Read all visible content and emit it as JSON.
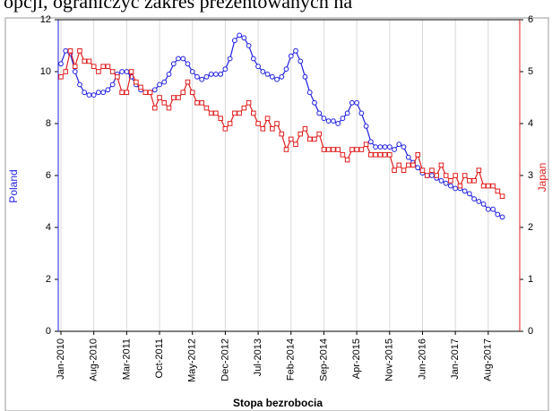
{
  "page_text": "opcji, ograniczyć zakres prezentowanych na",
  "chart_data": {
    "type": "line",
    "x_label": "Stopa bezrobocia",
    "y_label": "Poland",
    "y2_label": "Japan",
    "categories": [
      "Jan-2010",
      null,
      null,
      null,
      null,
      null,
      null,
      "Aug-2010",
      null,
      null,
      null,
      null,
      null,
      null,
      "Mar-2011",
      null,
      null,
      null,
      null,
      null,
      null,
      "Oct-2011",
      null,
      null,
      null,
      null,
      null,
      null,
      "May-2012",
      null,
      null,
      null,
      null,
      null,
      null,
      "Dec-2012",
      null,
      null,
      null,
      null,
      null,
      null,
      "Jul-2013",
      null,
      null,
      null,
      null,
      null,
      null,
      "Feb-2014",
      null,
      null,
      null,
      null,
      null,
      null,
      "Sep-2014",
      null,
      null,
      null,
      null,
      null,
      null,
      "Apr-2015",
      null,
      null,
      null,
      null,
      null,
      null,
      "Nov-2015",
      null,
      null,
      null,
      null,
      null,
      null,
      "Jun-2016",
      null,
      null,
      null,
      null,
      null,
      null,
      "Jan-2017",
      null,
      null,
      null,
      null,
      null,
      null,
      "Aug-2017",
      null,
      null,
      null
    ],
    "ylim": [
      0,
      12
    ],
    "yticks": [
      0,
      2,
      4,
      6,
      8,
      10,
      12
    ],
    "y2lim": [
      0,
      6
    ],
    "y2ticks": [
      0,
      1,
      2,
      3,
      4,
      5,
      6
    ],
    "grid": true,
    "series": [
      {
        "name": "Poland",
        "color": "#1f1fe0",
        "marker": "circle",
        "values": [
          10.3,
          10.8,
          10.7,
          10.0,
          9.5,
          9.2,
          9.1,
          9.1,
          9.2,
          9.2,
          9.3,
          9.5,
          9.9,
          10.0,
          10.0,
          9.8,
          9.5,
          9.3,
          9.2,
          9.2,
          9.3,
          9.5,
          9.6,
          9.9,
          10.3,
          10.5,
          10.5,
          10.3,
          10.0,
          9.8,
          9.7,
          9.8,
          9.9,
          9.9,
          9.9,
          10.1,
          10.5,
          11.2,
          11.4,
          11.3,
          11.0,
          10.5,
          10.2,
          10.0,
          9.9,
          9.8,
          9.7,
          9.8,
          10.1,
          10.6,
          10.8,
          10.4,
          9.8,
          9.2,
          8.8,
          8.4,
          8.2,
          8.1,
          8.1,
          8.0,
          8.2,
          8.4,
          8.8,
          8.8,
          8.4,
          7.9,
          7.3,
          7.1,
          7.1,
          7.1,
          7.1,
          7.0,
          7.2,
          7.1,
          6.7,
          6.5,
          6.3,
          6.1,
          6.0,
          6.0,
          5.9,
          5.8,
          5.7,
          5.6,
          5.5,
          5.5,
          5.4,
          5.3,
          5.1,
          5.0,
          4.9,
          4.7,
          4.7,
          4.5,
          4.4
        ]
      },
      {
        "name": "Japan",
        "color": "#e01f1f",
        "marker": "square",
        "axis": "y2",
        "values": [
          4.9,
          5.0,
          5.4,
          5.1,
          5.4,
          5.2,
          5.2,
          5.1,
          5.0,
          5.1,
          5.1,
          5.0,
          4.9,
          4.6,
          4.6,
          5.0,
          4.8,
          4.7,
          4.6,
          4.6,
          4.3,
          4.5,
          4.4,
          4.3,
          4.5,
          4.5,
          4.6,
          4.8,
          4.6,
          4.4,
          4.4,
          4.3,
          4.2,
          4.2,
          4.1,
          3.9,
          4.0,
          4.2,
          4.2,
          4.3,
          4.4,
          4.2,
          4.0,
          3.9,
          4.1,
          3.9,
          4.0,
          3.8,
          3.5,
          3.7,
          3.6,
          3.8,
          3.9,
          3.7,
          3.7,
          3.8,
          3.5,
          3.5,
          3.5,
          3.5,
          3.4,
          3.3,
          3.5,
          3.5,
          3.5,
          3.6,
          3.4,
          3.4,
          3.4,
          3.4,
          3.4,
          3.1,
          3.2,
          3.1,
          3.2,
          3.2,
          3.4,
          3.1,
          3.0,
          3.1,
          3.0,
          3.2,
          3.0,
          2.9,
          3.0,
          2.8,
          3.0,
          2.9,
          2.9,
          3.1,
          2.8,
          2.8,
          2.8,
          2.7,
          2.6
        ]
      }
    ]
  }
}
